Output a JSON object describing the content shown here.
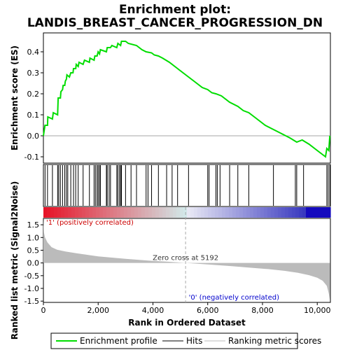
{
  "colors": {
    "es_line": "#00dd00",
    "hit": "#000000",
    "metric_fill": "#bbbbbb",
    "pos_label": "#cc0000",
    "neg_label": "#0000cc",
    "zero_line": "#aaaaaa",
    "frame": "#000000"
  },
  "chart_data": {
    "type": "line",
    "title_line1": "Enrichment plot:",
    "title_line2": "LANDIS_BREAST_CANCER_PROGRESSION_DN",
    "xlabel": "Rank in Ordered Dataset",
    "es_panel": {
      "ylabel": "Enrichment score (ES)",
      "ylim": [
        -0.13,
        0.49
      ],
      "yticks": [
        -0.1,
        0.0,
        0.1,
        0.2,
        0.3,
        0.4
      ],
      "ytick_labels": [
        "-0.1",
        "0.0",
        "0.1",
        "0.2",
        "0.3",
        "0.4"
      ],
      "points": [
        [
          0,
          0.0
        ],
        [
          60,
          0.05
        ],
        [
          150,
          0.05
        ],
        [
          160,
          0.09
        ],
        [
          330,
          0.08
        ],
        [
          360,
          0.11
        ],
        [
          520,
          0.1
        ],
        [
          540,
          0.18
        ],
        [
          620,
          0.18
        ],
        [
          640,
          0.21
        ],
        [
          700,
          0.22
        ],
        [
          720,
          0.24
        ],
        [
          780,
          0.24
        ],
        [
          800,
          0.26
        ],
        [
          840,
          0.27
        ],
        [
          860,
          0.29
        ],
        [
          950,
          0.28
        ],
        [
          1000,
          0.3
        ],
        [
          1080,
          0.3
        ],
        [
          1100,
          0.32
        ],
        [
          1180,
          0.32
        ],
        [
          1200,
          0.34
        ],
        [
          1270,
          0.33
        ],
        [
          1300,
          0.35
        ],
        [
          1450,
          0.34
        ],
        [
          1500,
          0.36
        ],
        [
          1680,
          0.35
        ],
        [
          1700,
          0.37
        ],
        [
          1850,
          0.36
        ],
        [
          1880,
          0.38
        ],
        [
          1960,
          0.38
        ],
        [
          2000,
          0.4
        ],
        [
          2050,
          0.39
        ],
        [
          2080,
          0.41
        ],
        [
          2300,
          0.4
        ],
        [
          2330,
          0.42
        ],
        [
          2450,
          0.42
        ],
        [
          2500,
          0.43
        ],
        [
          2680,
          0.42
        ],
        [
          2720,
          0.44
        ],
        [
          2820,
          0.43
        ],
        [
          2850,
          0.45
        ],
        [
          3000,
          0.45
        ],
        [
          3100,
          0.44
        ],
        [
          3400,
          0.43
        ],
        [
          3600,
          0.41
        ],
        [
          3750,
          0.4
        ],
        [
          3950,
          0.395
        ],
        [
          4050,
          0.385
        ],
        [
          4200,
          0.38
        ],
        [
          4350,
          0.37
        ],
        [
          4600,
          0.35
        ],
        [
          4900,
          0.32
        ],
        [
          5200,
          0.29
        ],
        [
          5500,
          0.26
        ],
        [
          5800,
          0.23
        ],
        [
          6000,
          0.22
        ],
        [
          6150,
          0.205
        ],
        [
          6300,
          0.2
        ],
        [
          6500,
          0.19
        ],
        [
          6800,
          0.16
        ],
        [
          7100,
          0.14
        ],
        [
          7300,
          0.12
        ],
        [
          7500,
          0.11
        ],
        [
          7800,
          0.08
        ],
        [
          8100,
          0.05
        ],
        [
          8400,
          0.03
        ],
        [
          8700,
          0.01
        ],
        [
          9000,
          -0.01
        ],
        [
          9250,
          -0.03
        ],
        [
          9450,
          -0.02
        ],
        [
          9700,
          -0.04
        ],
        [
          10000,
          -0.07
        ],
        [
          10300,
          -0.1
        ],
        [
          10350,
          -0.06
        ],
        [
          10420,
          -0.07
        ],
        [
          10460,
          0.0
        ]
      ]
    },
    "rank_panel": {
      "xlim": [
        0,
        10480
      ],
      "xticks": [
        0,
        2000,
        4000,
        6000,
        8000,
        10000
      ],
      "xtick_labels": [
        "0",
        "2,000",
        "4,000",
        "6,000",
        "8,000",
        "10,000"
      ],
      "hits": [
        60,
        150,
        330,
        520,
        560,
        620,
        700,
        780,
        840,
        890,
        1000,
        1100,
        1180,
        1270,
        1450,
        1680,
        1850,
        1900,
        1960,
        2000,
        2050,
        2080,
        2300,
        2330,
        2400,
        2450,
        2680,
        2720,
        2780,
        2820,
        2850,
        3000,
        3200,
        3400,
        3750,
        3820,
        3950,
        4200,
        4500,
        4700,
        4900,
        5300,
        6000,
        6050,
        6300,
        6350,
        6450,
        6800,
        7100,
        7500,
        8400,
        9200,
        9250,
        9500,
        10350,
        10400,
        10460
      ]
    },
    "metric_panel": {
      "ylabel": "Ranked list metric (Signal2Noise)",
      "ylim": [
        -1.55,
        1.75
      ],
      "yticks": [
        -1.5,
        -1.0,
        -0.5,
        0.0,
        0.5,
        1.0,
        1.5
      ],
      "ytick_labels": [
        "-1.5",
        "-1.0",
        "-0.5",
        "0.0",
        "0.5",
        "1.0",
        "1.5"
      ],
      "curve": [
        [
          0,
          1.75
        ],
        [
          20,
          1.2
        ],
        [
          60,
          1.0
        ],
        [
          150,
          0.8
        ],
        [
          300,
          0.62
        ],
        [
          500,
          0.52
        ],
        [
          800,
          0.45
        ],
        [
          1200,
          0.38
        ],
        [
          1600,
          0.32
        ],
        [
          2000,
          0.26
        ],
        [
          2500,
          0.21
        ],
        [
          3000,
          0.16
        ],
        [
          3500,
          0.12
        ],
        [
          4000,
          0.08
        ],
        [
          4500,
          0.05
        ],
        [
          5192,
          0.0
        ],
        [
          6000,
          -0.06
        ],
        [
          6800,
          -0.12
        ],
        [
          7500,
          -0.18
        ],
        [
          8200,
          -0.24
        ],
        [
          8800,
          -0.31
        ],
        [
          9300,
          -0.39
        ],
        [
          9700,
          -0.48
        ],
        [
          10000,
          -0.58
        ],
        [
          10200,
          -0.7
        ],
        [
          10350,
          -0.9
        ],
        [
          10420,
          -1.2
        ],
        [
          10460,
          -1.45
        ]
      ],
      "zero_cross_rank": 5192,
      "zero_cross_label": "Zero cross at 5192",
      "pos_label": "'1' (positively correlated)",
      "neg_label": "'0' (negatively correlated)"
    },
    "legend": {
      "placement": "bottom",
      "items": [
        {
          "label": "Enrichment profile",
          "kind": "es"
        },
        {
          "label": "Hits",
          "kind": "hit"
        },
        {
          "label": "Ranking metric scores",
          "kind": "metric"
        }
      ]
    }
  }
}
